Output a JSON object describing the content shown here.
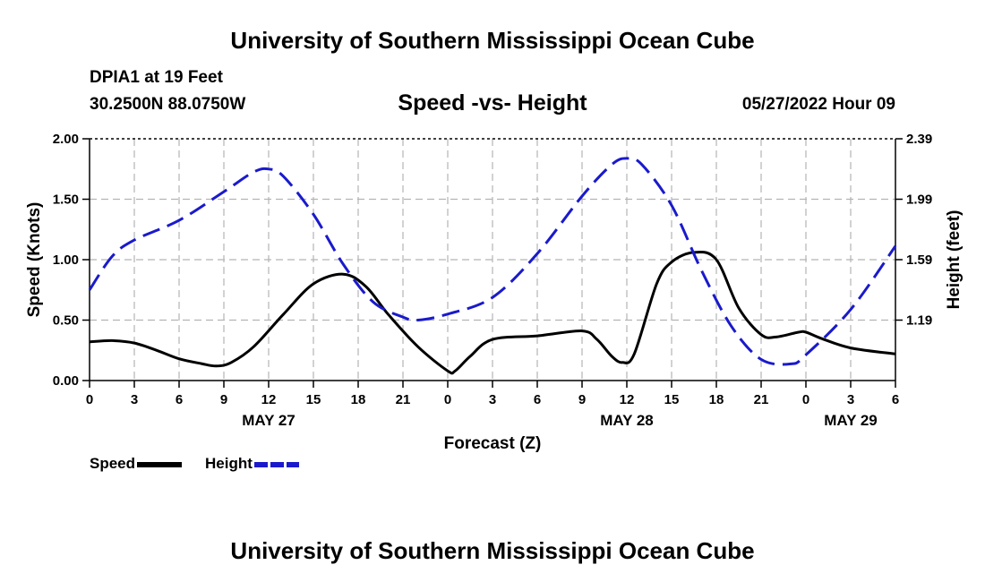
{
  "page": {
    "title_top": "University of Southern Mississippi Ocean Cube",
    "title_bottom": "University of Southern Mississippi Ocean Cube",
    "station": "DPIA1 at 19 Feet",
    "coords": "30.2500N  88.0750W",
    "subtitle": "Speed -vs- Height",
    "datetime": "05/27/2022 Hour 09"
  },
  "chart_data": {
    "type": "line",
    "title": "Speed -vs- Height",
    "xlabel": "Forecast (Z)",
    "ylabel": "Speed (Knots)",
    "y2label": "Height (feet)",
    "xlim": [
      0,
      54
    ],
    "ylim": [
      0,
      2.0
    ],
    "y2lim": [
      0.79,
      2.39
    ],
    "grid": true,
    "x_ticks": [
      0,
      3,
      6,
      9,
      12,
      15,
      18,
      21,
      24,
      27,
      30,
      33,
      36,
      39,
      42,
      45,
      48,
      51,
      54
    ],
    "x_tick_labels": [
      "0",
      "3",
      "6",
      "9",
      "12",
      "15",
      "18",
      "21",
      "0",
      "3",
      "6",
      "9",
      "12",
      "15",
      "18",
      "21",
      "0",
      "3",
      "6"
    ],
    "y_ticks": [
      0,
      0.5,
      1.0,
      1.5,
      2.0
    ],
    "y_tick_labels": [
      "0.00",
      "0.50",
      "1.00",
      "1.50",
      "2.00"
    ],
    "y2_ticks": [
      1.19,
      1.59,
      1.99,
      2.39
    ],
    "y2_tick_labels": [
      "1.19",
      "1.59",
      "1.99",
      "2.39"
    ],
    "day_labels": [
      {
        "x": 12,
        "label": "MAY 27"
      },
      {
        "x": 36,
        "label": "MAY 28"
      },
      {
        "x": 51,
        "label": "MAY 29"
      }
    ],
    "series": [
      {
        "name": "Speed",
        "axis": "left",
        "color": "#000000",
        "style": "solid",
        "x": [
          0,
          1.5,
          3,
          4.5,
          6,
          7.5,
          8.5,
          9.5,
          11,
          13,
          15,
          17,
          18.5,
          20,
          22,
          24,
          24.5,
          25.5,
          27,
          30,
          33,
          34,
          35,
          35.7,
          36.5,
          38,
          39,
          40.5,
          42,
          43.5,
          45,
          46,
          47.5,
          48,
          49,
          51,
          54
        ],
        "y": [
          0.32,
          0.33,
          0.31,
          0.25,
          0.18,
          0.14,
          0.12,
          0.15,
          0.28,
          0.55,
          0.8,
          0.88,
          0.78,
          0.55,
          0.28,
          0.08,
          0.08,
          0.2,
          0.34,
          0.37,
          0.41,
          0.34,
          0.2,
          0.15,
          0.22,
          0.8,
          0.98,
          1.06,
          1.0,
          0.6,
          0.38,
          0.36,
          0.4,
          0.4,
          0.35,
          0.27,
          0.22
        ]
      },
      {
        "name": "Height",
        "axis": "right",
        "color": "#1a1acc",
        "style": "dashed",
        "x": [
          0,
          1.5,
          3,
          6,
          9,
          11,
          12,
          13,
          15,
          17,
          19,
          21,
          22,
          24,
          27,
          30,
          33,
          35,
          36,
          37,
          39,
          41,
          43,
          45,
          47,
          48,
          51,
          54
        ],
        "y": [
          1.39,
          1.61,
          1.72,
          1.85,
          2.04,
          2.17,
          2.19,
          2.14,
          1.89,
          1.56,
          1.31,
          1.21,
          1.19,
          1.23,
          1.34,
          1.63,
          2.01,
          2.22,
          2.26,
          2.22,
          1.95,
          1.52,
          1.15,
          0.93,
          0.9,
          0.96,
          1.26,
          1.68
        ]
      }
    ],
    "legend": [
      {
        "label": "Speed",
        "color": "#000000",
        "style": "solid"
      },
      {
        "label": "Height",
        "color": "#1a1acc",
        "style": "dashed"
      }
    ]
  }
}
